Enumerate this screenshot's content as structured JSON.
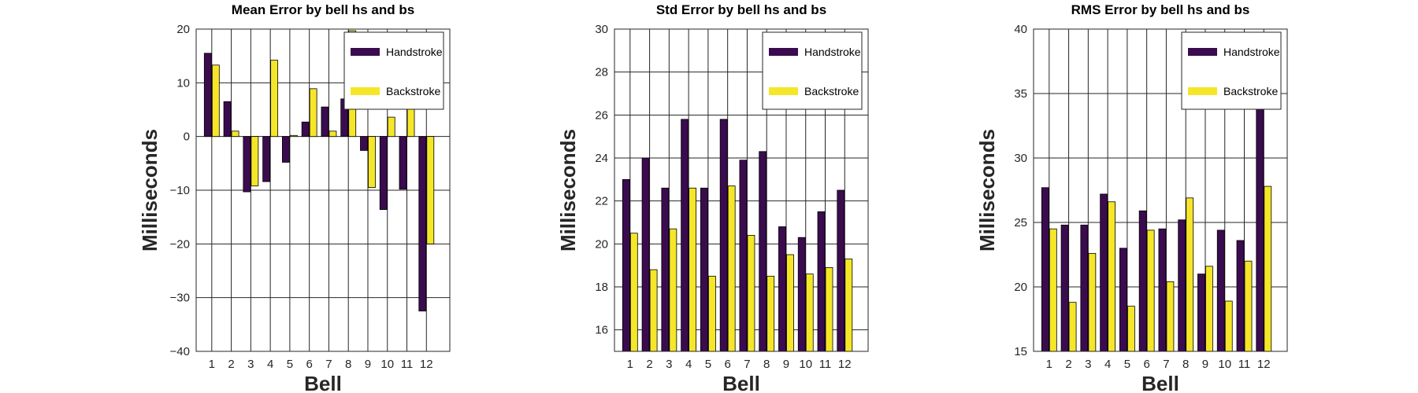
{
  "colors": {
    "handstroke": "#3b0b4f",
    "backstroke": "#f5e62a",
    "grid": "#262626",
    "axis": "#262626",
    "background": "#ffffff"
  },
  "chart_data": [
    {
      "type": "bar",
      "title": "Mean Error by bell hs and bs",
      "xlabel": "Bell",
      "ylabel": "Milliseconds",
      "categories": [
        "1",
        "2",
        "3",
        "4",
        "5",
        "6",
        "7",
        "8",
        "9",
        "10",
        "11",
        "12"
      ],
      "xlim": [
        0.2,
        13.2
      ],
      "ylim": [
        -40,
        20
      ],
      "yticks": [
        -40,
        -30,
        -20,
        -10,
        0,
        10,
        20
      ],
      "ytick_labels": [
        "−40",
        "−30",
        "−20",
        "−10",
        "0",
        "10",
        "20"
      ],
      "grid": true,
      "legend": "top-right",
      "series": [
        {
          "name": "Handstroke",
          "values": [
            15.5,
            6.5,
            -10.3,
            -8.4,
            -4.8,
            2.7,
            5.5,
            7.0,
            -2.6,
            -13.6,
            -9.8,
            -32.5
          ]
        },
        {
          "name": "Backstroke",
          "values": [
            13.3,
            1.0,
            -9.2,
            14.2,
            0.2,
            8.9,
            1.0,
            19.7,
            -9.5,
            3.6,
            11.3,
            -20.0
          ]
        }
      ]
    },
    {
      "type": "bar",
      "title": "Std Error by bell hs and bs",
      "xlabel": "Bell",
      "ylabel": "Milliseconds",
      "categories": [
        "1",
        "2",
        "3",
        "4",
        "5",
        "6",
        "7",
        "8",
        "9",
        "10",
        "11",
        "12"
      ],
      "xlim": [
        0.2,
        13.2
      ],
      "ylim": [
        15,
        30
      ],
      "yticks": [
        16,
        18,
        20,
        22,
        24,
        26,
        28,
        30
      ],
      "ytick_labels": [
        "16",
        "18",
        "20",
        "22",
        "24",
        "26",
        "28",
        "30"
      ],
      "grid": true,
      "legend": "top-right",
      "series": [
        {
          "name": "Handstroke",
          "values": [
            23.0,
            24.0,
            22.6,
            25.8,
            22.6,
            25.8,
            23.9,
            24.3,
            20.8,
            20.3,
            21.5,
            22.5
          ]
        },
        {
          "name": "Backstroke",
          "values": [
            20.5,
            18.8,
            20.7,
            22.6,
            18.5,
            22.7,
            20.4,
            18.5,
            19.5,
            18.6,
            18.9,
            19.3
          ]
        }
      ]
    },
    {
      "type": "bar",
      "title": "RMS Error by bell hs and bs",
      "xlabel": "Bell",
      "ylabel": "Milliseconds",
      "categories": [
        "1",
        "2",
        "3",
        "4",
        "5",
        "6",
        "7",
        "8",
        "9",
        "10",
        "11",
        "12"
      ],
      "xlim": [
        0.2,
        13.2
      ],
      "ylim": [
        15,
        40
      ],
      "yticks": [
        15,
        20,
        25,
        30,
        35,
        40
      ],
      "ytick_labels": [
        "15",
        "20",
        "25",
        "30",
        "35",
        "40"
      ],
      "grid": true,
      "legend": "top-right",
      "series": [
        {
          "name": "Handstroke",
          "values": [
            27.7,
            24.8,
            24.8,
            27.2,
            23.0,
            25.9,
            24.5,
            25.2,
            21.0,
            24.4,
            23.6,
            39.4
          ]
        },
        {
          "name": "Backstroke",
          "values": [
            24.5,
            18.8,
            22.6,
            26.6,
            18.5,
            24.4,
            20.4,
            26.9,
            21.6,
            18.9,
            22.0,
            27.8
          ]
        }
      ]
    }
  ]
}
